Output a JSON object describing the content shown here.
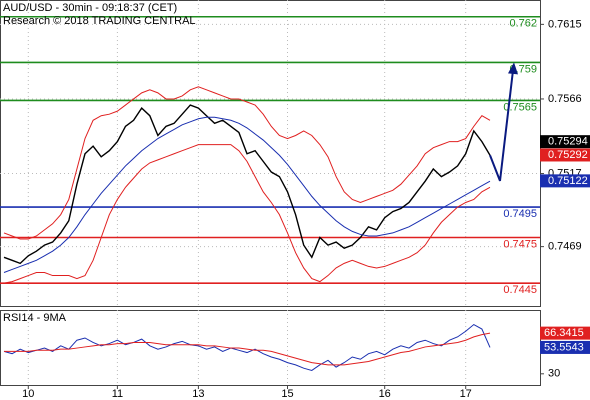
{
  "chart_data": [
    {
      "type": "line",
      "title": "AUD/USD - 30min - 09:18:37 (CET)",
      "subtitle": "Research © 2018 TRADING CENTRAL",
      "categories": [
        null,
        null,
        null,
        "10",
        null,
        null,
        null,
        null,
        null,
        null,
        null,
        null,
        null,
        null,
        "11",
        null,
        null,
        null,
        null,
        null,
        null,
        null,
        null,
        null,
        "13",
        null,
        null,
        null,
        null,
        null,
        null,
        null,
        null,
        null,
        null,
        "15",
        null,
        null,
        null,
        null,
        null,
        null,
        null,
        null,
        null,
        null,
        null,
        "16",
        null,
        null,
        null,
        null,
        null,
        null,
        null,
        null,
        null,
        "17",
        null,
        null,
        null
      ],
      "ylim": [
        0.743,
        0.7631
      ],
      "yticks": [
        0.7615,
        0.7566,
        0.7517,
        0.7469
      ],
      "grid": true,
      "series": [
        {
          "color": "#000000",
          "values": [
            0.7462,
            0.746,
            0.7458,
            0.7463,
            0.7466,
            0.747,
            0.7472,
            0.7478,
            0.7486,
            0.751,
            0.753,
            0.7535,
            0.7528,
            0.7532,
            0.7538,
            0.7548,
            0.7552,
            0.756,
            0.7555,
            0.7542,
            0.7548,
            0.755,
            0.7556,
            0.7562,
            0.756,
            0.7555,
            0.755,
            0.7552,
            0.7548,
            0.7544,
            0.753,
            0.7532,
            0.7525,
            0.7518,
            0.7515,
            0.7505,
            0.749,
            0.747,
            0.7462,
            0.7475,
            0.747,
            0.7472,
            0.7468,
            0.747,
            0.7475,
            0.7482,
            0.748,
            0.7488,
            0.7492,
            0.7494,
            0.7498,
            0.7505,
            0.7512,
            0.752,
            0.7515,
            0.7518,
            0.7522,
            0.753,
            0.7545,
            0.7538,
            0.7529
          ]
        },
        {
          "color": "#1a2fb0",
          "values": [
            0.7452,
            0.7454,
            0.7456,
            0.7458,
            0.746,
            0.7463,
            0.7466,
            0.747,
            0.7475,
            0.7482,
            0.749,
            0.7497,
            0.7504,
            0.751,
            0.7516,
            0.7522,
            0.7527,
            0.7532,
            0.7536,
            0.754,
            0.7543,
            0.7546,
            0.7549,
            0.7551,
            0.7553,
            0.7554,
            0.7554,
            0.7553,
            0.7552,
            0.755,
            0.7547,
            0.7543,
            0.7539,
            0.7534,
            0.7529,
            0.7523,
            0.7516,
            0.7509,
            0.7502,
            0.7496,
            0.7491,
            0.7486,
            0.7482,
            0.7479,
            0.7477,
            0.7476,
            0.7476,
            0.7477,
            0.7478,
            0.748,
            0.7482,
            0.7485,
            0.7488,
            0.7491,
            0.7494,
            0.7497,
            0.75,
            0.7503,
            0.7506,
            0.7509,
            0.7512
          ]
        },
        {
          "color": "#e02020",
          "values": [
            0.7478,
            0.7476,
            0.7474,
            0.7474,
            0.7476,
            0.748,
            0.7484,
            0.749,
            0.75,
            0.752,
            0.754,
            0.7552,
            0.7555,
            0.7556,
            0.7558,
            0.7562,
            0.7566,
            0.757,
            0.7572,
            0.757,
            0.7566,
            0.7566,
            0.7568,
            0.7572,
            0.7574,
            0.7572,
            0.757,
            0.7568,
            0.7566,
            0.7566,
            0.7564,
            0.7562,
            0.7556,
            0.7548,
            0.7542,
            0.754,
            0.7542,
            0.7545,
            0.7542,
            0.7536,
            0.7528,
            0.7515,
            0.7505,
            0.75,
            0.7498,
            0.75,
            0.7502,
            0.7504,
            0.7506,
            0.751,
            0.7516,
            0.7522,
            0.753,
            0.7534,
            0.7536,
            0.7538,
            0.7538,
            0.754,
            0.7548,
            0.7555,
            0.7552
          ]
        },
        {
          "color": "#e02020",
          "values": [
            0.7445,
            0.7446,
            0.7448,
            0.745,
            0.7452,
            0.7452,
            0.745,
            0.745,
            0.745,
            0.7448,
            0.745,
            0.746,
            0.7475,
            0.749,
            0.75,
            0.7508,
            0.7514,
            0.752,
            0.7524,
            0.7526,
            0.7528,
            0.753,
            0.7532,
            0.7534,
            0.7536,
            0.7536,
            0.7536,
            0.7536,
            0.7536,
            0.7532,
            0.7525,
            0.7515,
            0.7505,
            0.7498,
            0.749,
            0.7478,
            0.7465,
            0.7455,
            0.7448,
            0.7446,
            0.745,
            0.7455,
            0.7458,
            0.746,
            0.7458,
            0.7456,
            0.7455,
            0.7456,
            0.7458,
            0.746,
            0.7462,
            0.7465,
            0.747,
            0.7478,
            0.7485,
            0.749,
            0.7495,
            0.7498,
            0.75,
            0.7505,
            0.7508
          ]
        }
      ],
      "levels": [
        {
          "value": 0.762,
          "color": "#1e8c1e"
        },
        {
          "value": 0.759,
          "color": "#1e8c1e"
        },
        {
          "value": 0.7565,
          "color": "#1e8c1e"
        },
        {
          "value": 0.7495,
          "color": "#1a2fb0"
        },
        {
          "value": 0.7475,
          "color": "#e02020"
        },
        {
          "value": 0.7445,
          "color": "#e02020"
        }
      ],
      "price_boxes": [
        {
          "value": 0.75294,
          "color": "#000000"
        },
        {
          "value": 0.75292,
          "color": "#e02020"
        },
        {
          "value": 0.75122,
          "color": "#1a2fb0"
        }
      ]
    },
    {
      "type": "line",
      "title": "RSI14 - 9MA",
      "ylim": [
        20,
        87
      ],
      "yticks": [
        30
      ],
      "series": [
        {
          "color": "#1a2fb0",
          "values": [
            50,
            48,
            52,
            49,
            51,
            53,
            50,
            55,
            52,
            60,
            62,
            58,
            55,
            57,
            60,
            56,
            58,
            61,
            55,
            52,
            54,
            57,
            59,
            56,
            55,
            52,
            54,
            50,
            53,
            51,
            49,
            52,
            48,
            45,
            43,
            40,
            38,
            35,
            33,
            38,
            42,
            36,
            40,
            45,
            43,
            48,
            50,
            47,
            52,
            55,
            53,
            58,
            60,
            57,
            55,
            60,
            63,
            68,
            74,
            70,
            53.5543
          ]
        },
        {
          "color": "#e02020",
          "values": [
            50,
            50,
            50,
            50,
            51,
            51,
            51,
            52,
            52,
            53,
            54,
            55,
            56,
            56,
            57,
            57,
            58,
            58,
            58,
            57,
            56,
            56,
            56,
            56,
            56,
            55,
            55,
            54,
            53,
            53,
            52,
            51,
            51,
            50,
            48,
            46,
            44,
            42,
            40,
            39,
            38,
            38,
            38,
            39,
            40,
            41,
            43,
            45,
            47,
            49,
            50,
            52,
            54,
            55,
            56,
            57,
            58,
            60,
            63,
            65,
            66.3415
          ]
        }
      ]
    }
  ]
}
